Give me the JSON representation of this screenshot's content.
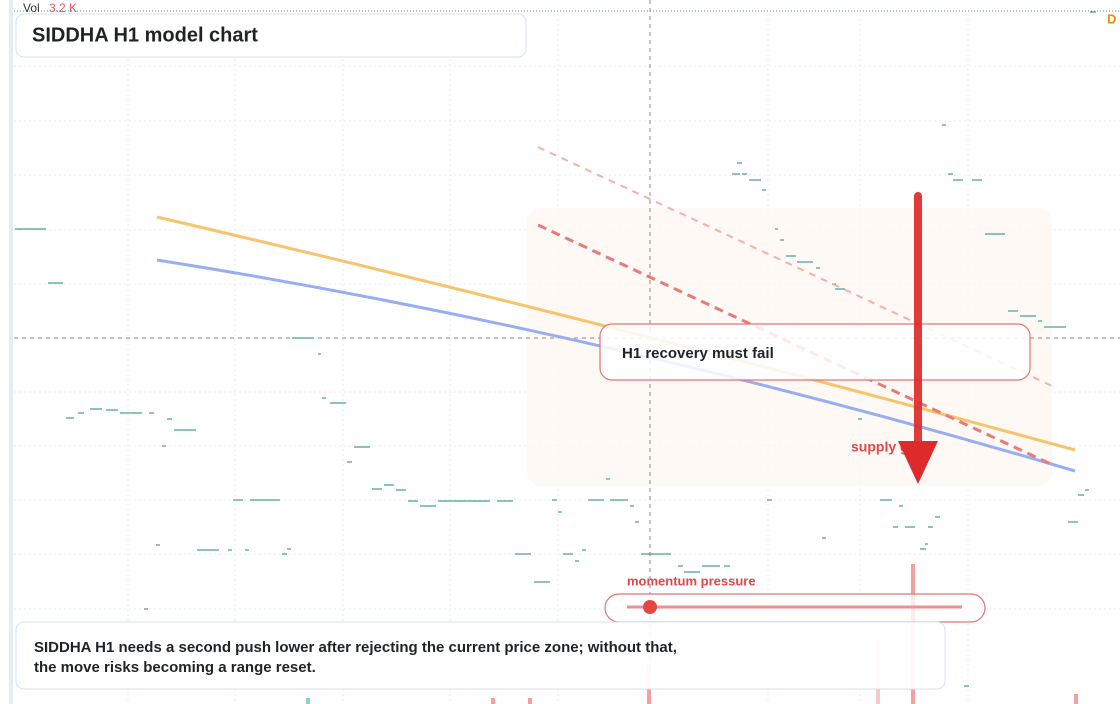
{
  "header": {
    "volume_label": "Vol",
    "volume_value": "3.2 K",
    "corner_badge": "D",
    "title": "SIDDHA H1 model chart"
  },
  "annotations": {
    "zone_label": "H1 recovery must fail",
    "arrow_label": "supply gone",
    "meter_label": "momentum pressure"
  },
  "caption": {
    "lines": [
      "SIDDHA H1 needs a second push lower after rejecting the current price zone; without that,",
      "the move risks becoming a range reset."
    ]
  }
}
